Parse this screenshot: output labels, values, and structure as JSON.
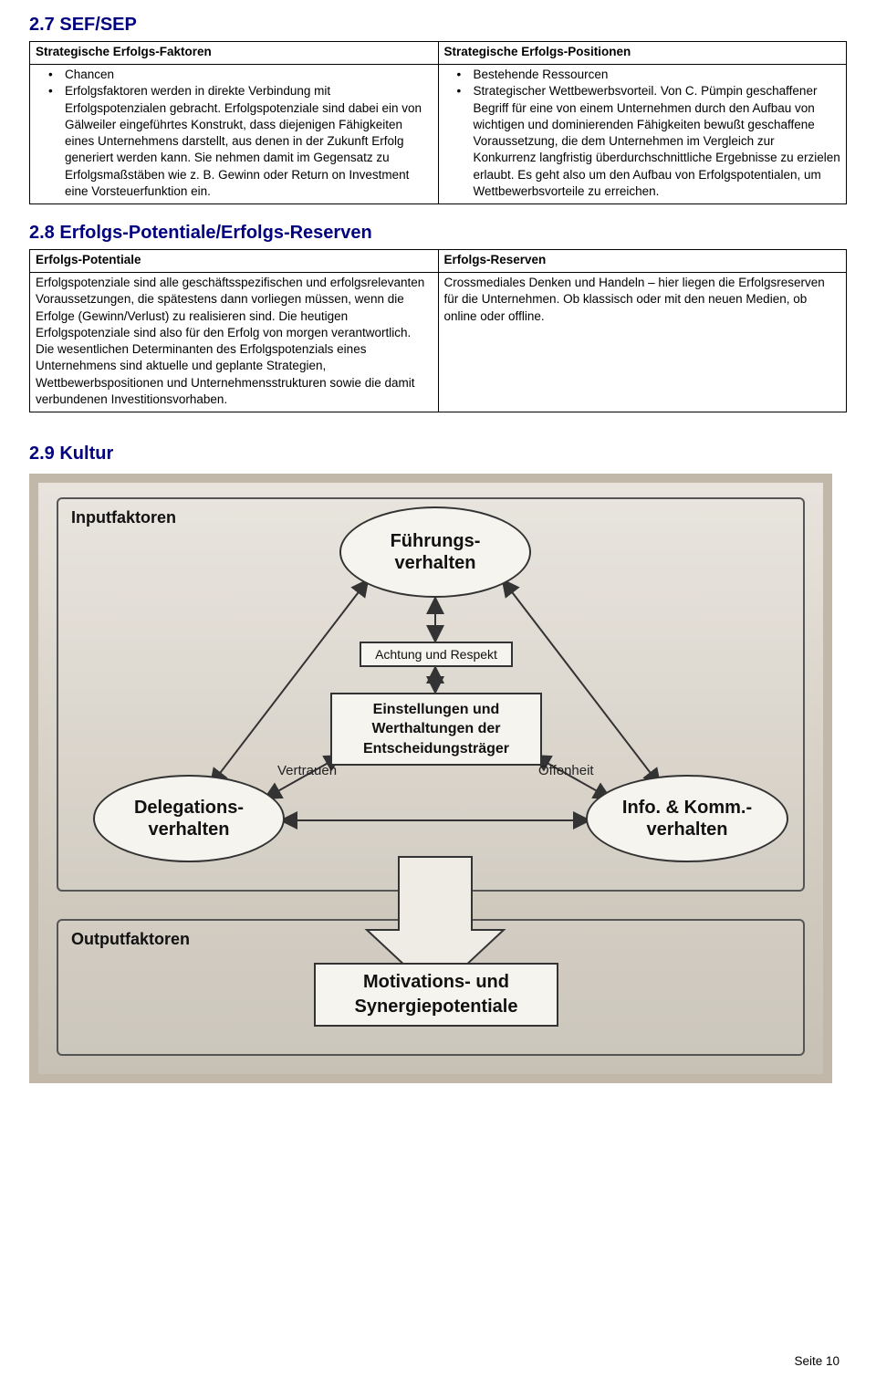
{
  "sec27": {
    "heading": "2.7 SEF/SEP",
    "left_header": "Strategische Erfolgs-Faktoren",
    "right_header": "Strategische Erfolgs-Positionen",
    "left_item1": "Chancen",
    "left_item2": "Erfolgsfaktoren werden in direkte Verbindung mit Erfolgspotenzialen gebracht. Erfolgspotenziale sind dabei ein von Gälweiler eingeführtes Konstrukt, dass diejenigen Fähigkeiten eines Unternehmens darstellt, aus denen in der Zukunft Erfolg generiert werden kann. Sie nehmen damit im Gegensatz zu Erfolgsmaßstäben wie z. B. Gewinn oder Return on Investment eine Vorsteuerfunktion ein.",
    "right_item1": "Bestehende Ressourcen",
    "right_item2": "Strategischer Wettbewerbsvorteil. Von C. Pümpin geschaffener Begriff für eine von einem Unternehmen durch den Aufbau von wichtigen und dominierenden Fähigkeiten bewußt geschaffene Voraussetzung, die dem Unternehmen im Vergleich zur Konkurrenz langfristig überdurchschnittliche Ergebnisse zu erzielen erlaubt. Es geht also um den Aufbau von Erfolgspotentialen, um Wettbewerbsvorteile zu erreichen."
  },
  "sec28": {
    "heading": "2.8 Erfolgs-Potentiale/Erfolgs-Reserven",
    "left_header": "Erfolgs-Potentiale",
    "right_header": "Erfolgs-Reserven",
    "left_body": "Erfolgspotenziale sind alle geschäftsspezifischen und erfolgsrelevanten Voraussetzungen, die spätestens dann vorliegen müssen, wenn die Erfolge (Gewinn/Verlust) zu realisieren sind. Die heutigen Erfolgspotenziale sind also für den Erfolg von morgen verantwortlich. Die wesentlichen Determinanten des Erfolgspotenzials eines Unternehmens sind aktuelle und geplante Strategien, Wettbewerbspositionen und Unternehmensstrukturen sowie die damit verbundenen Investitionsvorhaben.",
    "right_body": "Crossmediales Denken und Handeln – hier liegen die Erfolgsreserven für die Unternehmen. Ob klassisch oder mit den neuen Medien, ob online oder offline."
  },
  "sec29": {
    "heading": "2.9 Kultur"
  },
  "diagram": {
    "panel1_label": "Inputfaktoren",
    "panel2_label": "Outputfaktoren",
    "node_top": "Führungs-\nverhalten",
    "node_mid_small": "Achtung und Respekt",
    "node_mid": "Einstellungen und\nWerthaltungen der\nEntscheidungsträger",
    "node_left": "Delegations-\nverhalten",
    "node_right": "Info. & Komm.-\nverhalten",
    "node_output": "Motivations- und\nSynergiepotentiale",
    "edge_left": "Vertrauen",
    "edge_right": "Offenheit",
    "colors": {
      "frame": "#c2b8aa",
      "paper": "#e4dfd6",
      "nodeFill": "#f6f4ef",
      "border": "#333333",
      "text": "#111111"
    }
  },
  "footer": "Seite 10"
}
